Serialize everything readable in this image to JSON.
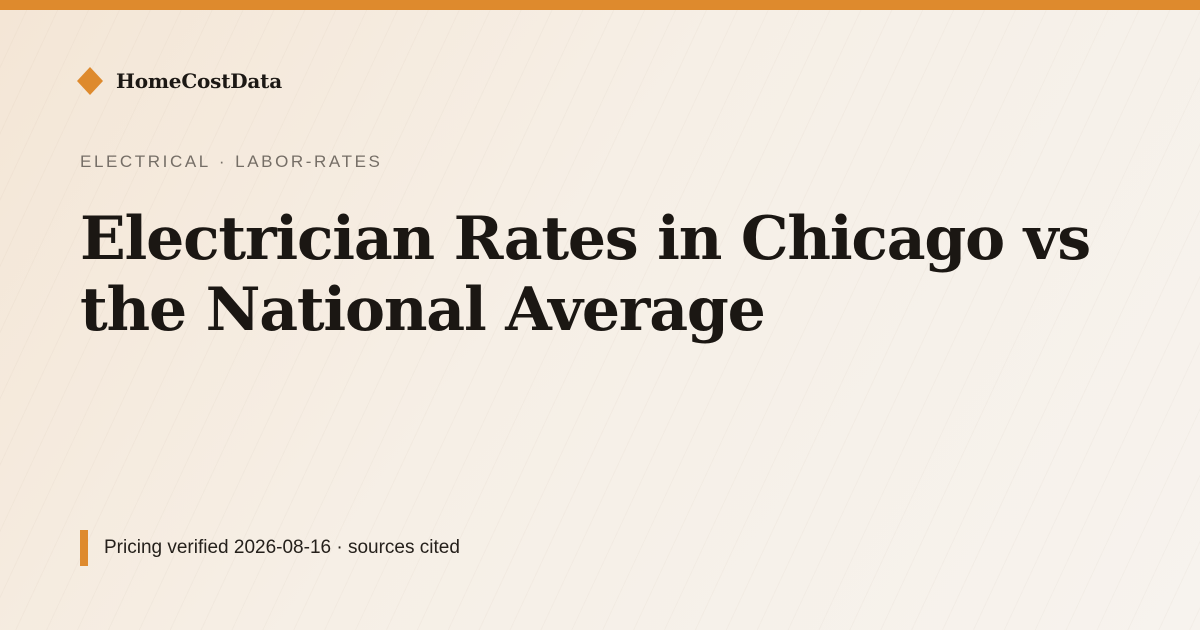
{
  "brand": {
    "name": "HomeCostData",
    "icon": "diamond-icon",
    "accent_color": "#de8a2d"
  },
  "category": {
    "primary": "ELECTRICAL",
    "separator": "·",
    "secondary": "LABOR-RATES"
  },
  "headline": "Electrician Rates in Chicago vs the National Average",
  "footer": {
    "text": "Pricing verified 2026-08-16 · sources cited"
  },
  "colors": {
    "accent": "#de8a2d",
    "text_dark": "#1b1713",
    "text_muted": "#756e66",
    "background": "#f6f1e9"
  }
}
